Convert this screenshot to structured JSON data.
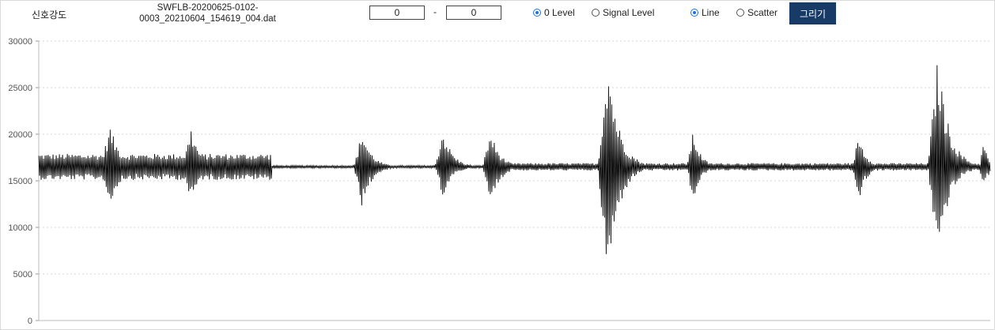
{
  "toolbar": {
    "title": "신호강도",
    "file_name_line1": "SWFLB-20200625-0102-",
    "file_name_line2": "0003_20210604_154619_004.dat",
    "range_start": "0",
    "range_separator": "-",
    "range_end": "0",
    "level_options": [
      {
        "label": "0 Level",
        "checked": true
      },
      {
        "label": "Signal Level",
        "checked": false
      }
    ],
    "plot_options": [
      {
        "label": "Line",
        "checked": true
      },
      {
        "label": "Scatter",
        "checked": false
      }
    ],
    "draw_label": "그리기",
    "accent_color": "#1a73e8",
    "button_color": "#173a66"
  },
  "chart_data": {
    "type": "line",
    "ylim": [
      0,
      30000
    ],
    "y_ticks": [
      0,
      5000,
      10000,
      15000,
      20000,
      25000,
      30000
    ],
    "y_tick_labels": [
      "0",
      "5000",
      "10000",
      "15000",
      "20000",
      "25000",
      "30000"
    ],
    "grid": "horizontal-dotted",
    "line_color": "#000000",
    "series": [
      {
        "baseline": 16500,
        "points_count": 1200,
        "segments": [
          {
            "x0": 0,
            "x1": 0.245,
            "amp": 1400
          },
          {
            "x0": 0.245,
            "x1": 0.5,
            "amp": 150
          },
          {
            "x0": 0.5,
            "x1": 1,
            "amp": 400
          }
        ],
        "bursts": [
          {
            "center": 0.075,
            "width": 0.03,
            "max": 20900,
            "min": 12200
          },
          {
            "center": 0.16,
            "width": 0.025,
            "max": 20800,
            "min": 12300
          },
          {
            "center": 0.34,
            "width": 0.025,
            "max": 20500,
            "min": 12000
          },
          {
            "center": 0.425,
            "width": 0.025,
            "max": 20600,
            "min": 13200
          },
          {
            "center": 0.475,
            "width": 0.025,
            "max": 20400,
            "min": 12300
          },
          {
            "center": 0.598,
            "width": 0.03,
            "max": 28600,
            "min": 3700
          },
          {
            "center": 0.688,
            "width": 0.02,
            "max": 20400,
            "min": 12500
          },
          {
            "center": 0.862,
            "width": 0.02,
            "max": 20100,
            "min": 12700
          },
          {
            "center": 0.945,
            "width": 0.03,
            "max": 28600,
            "min": 6300
          },
          {
            "center": 0.993,
            "width": 0.012,
            "max": 19400,
            "min": 13700
          }
        ]
      }
    ]
  }
}
